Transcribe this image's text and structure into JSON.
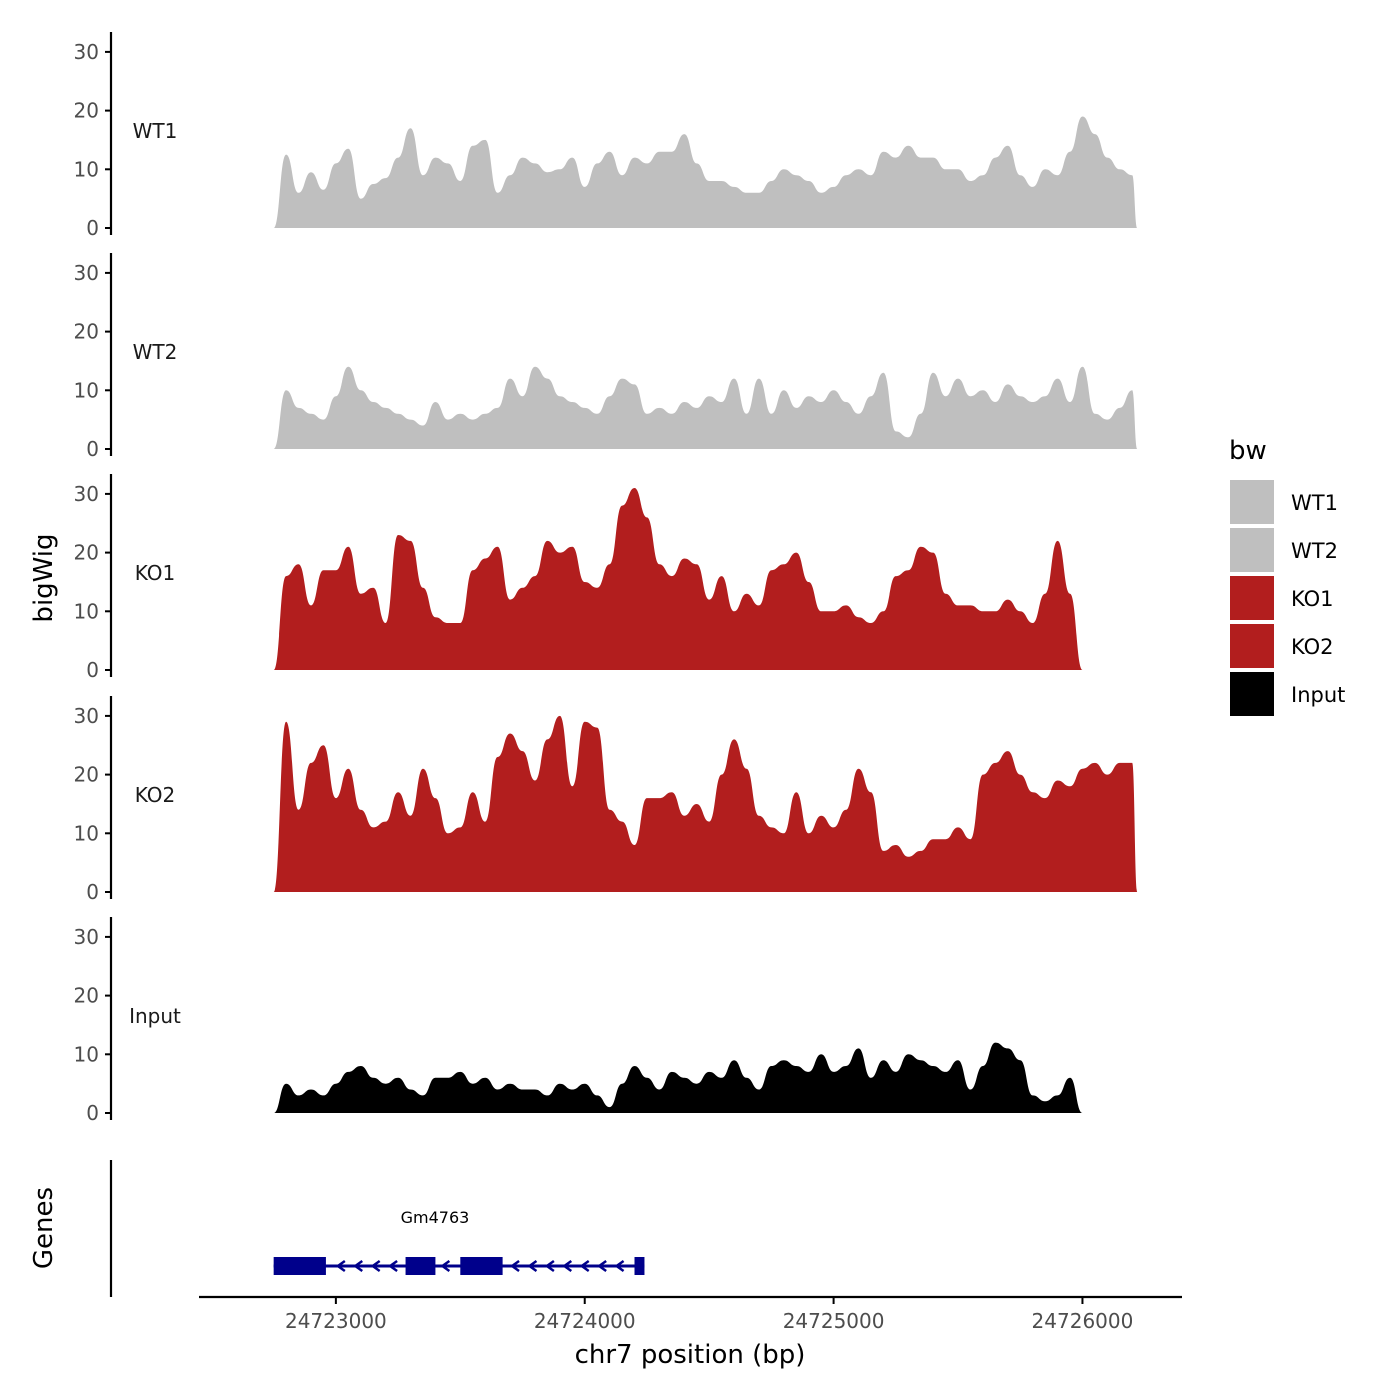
{
  "chart_data": {
    "type": "area",
    "xlabel": "chr7 position (bp)",
    "ylabel": "bigWig",
    "xlim": [
      24722450,
      24726400
    ],
    "x_ticks": [
      24723000,
      24724000,
      24725000,
      24726000
    ],
    "x_tick_labels": [
      "24723000",
      "24724000",
      "24725000",
      "24726000"
    ],
    "ylim": [
      0,
      33
    ],
    "y_ticks": [
      0,
      10,
      20,
      30
    ],
    "y_tick_labels": [
      "0",
      "10",
      "20",
      "30"
    ],
    "legend": {
      "title": "bw",
      "placement": "right",
      "entries": [
        {
          "label": "WT1",
          "color": "#bfbfbf"
        },
        {
          "label": "WT2",
          "color": "#bfbfbf"
        },
        {
          "label": "KO1",
          "color": "#b21e1e"
        },
        {
          "label": "KO2",
          "color": "#b21e1e"
        },
        {
          "label": "Input",
          "color": "#000000"
        }
      ]
    },
    "grid": false,
    "series": [
      {
        "name": "WT1",
        "color": "#bfbfbf",
        "x": [
          24722750,
          24722800,
          24722850,
          24722900,
          24722950,
          24723000,
          24723050,
          24723100,
          24723150,
          24723200,
          24723250,
          24723300,
          24723350,
          24723400,
          24723450,
          24723500,
          24723550,
          24723600,
          24723650,
          24723700,
          24723750,
          24723800,
          24723850,
          24723900,
          24723950,
          24724000,
          24724050,
          24724100,
          24724150,
          24724200,
          24724250,
          24724300,
          24724350,
          24724400,
          24724450,
          24724500,
          24724550,
          24724600,
          24724650,
          24724700,
          24724750,
          24724800,
          24724850,
          24724900,
          24724950,
          24725000,
          24725050,
          24725100,
          24725150,
          24725200,
          24725250,
          24725300,
          24725350,
          24725400,
          24725450,
          24725500,
          24725550,
          24725600,
          24725650,
          24725700,
          24725750,
          24725800,
          24725850,
          24725900,
          24725950,
          24726000,
          24726050,
          24726100,
          24726150,
          24726200,
          24726220
        ],
        "y": [
          0,
          12.5,
          6,
          9.5,
          6.5,
          11,
          13.5,
          5,
          7.5,
          8.5,
          12,
          17,
          9,
          12,
          11,
          8,
          14,
          15,
          6,
          9,
          12,
          11,
          9.5,
          10,
          12,
          7,
          11,
          13,
          9,
          12,
          11,
          13,
          13,
          16,
          11,
          8,
          8,
          7,
          6,
          6,
          8,
          10,
          9,
          8,
          6,
          7,
          9,
          10,
          9,
          13,
          12,
          14,
          12,
          12,
          10,
          10,
          8,
          9,
          12,
          14,
          9,
          7,
          10,
          9,
          13,
          19,
          16,
          12,
          10,
          9,
          0
        ]
      },
      {
        "name": "WT2",
        "color": "#bfbfbf",
        "x": [
          24722750,
          24722800,
          24722850,
          24722900,
          24722950,
          24723000,
          24723050,
          24723100,
          24723150,
          24723200,
          24723250,
          24723300,
          24723350,
          24723400,
          24723450,
          24723500,
          24723550,
          24723600,
          24723650,
          24723700,
          24723750,
          24723800,
          24723850,
          24723900,
          24723950,
          24724000,
          24724050,
          24724100,
          24724150,
          24724200,
          24724250,
          24724300,
          24724350,
          24724400,
          24724450,
          24724500,
          24724550,
          24724600,
          24724650,
          24724700,
          24724750,
          24724800,
          24724850,
          24724900,
          24724950,
          24725000,
          24725050,
          24725100,
          24725150,
          24725200,
          24725250,
          24725300,
          24725350,
          24725400,
          24725450,
          24725500,
          24725550,
          24725600,
          24725650,
          24725700,
          24725750,
          24725800,
          24725850,
          24725900,
          24725950,
          24726000,
          24726050,
          24726100,
          24726150,
          24726200,
          24726220
        ],
        "y": [
          0,
          10,
          7,
          6,
          5,
          9,
          14,
          10,
          8,
          7,
          6,
          5,
          4,
          8,
          5,
          6,
          5,
          6,
          7,
          12,
          9,
          14,
          12,
          9,
          8,
          7,
          6,
          9,
          12,
          11,
          6,
          7,
          6,
          8,
          7,
          9,
          8,
          12,
          6,
          12,
          6,
          10,
          7,
          9,
          8,
          10,
          8,
          6,
          9,
          13,
          3,
          2,
          6,
          13,
          9,
          12,
          9,
          10,
          8,
          11,
          9,
          8,
          9,
          12,
          8,
          14,
          6,
          5,
          7,
          10,
          0
        ]
      },
      {
        "name": "KO1",
        "color": "#b21e1e",
        "x": [
          24722750,
          24722800,
          24722850,
          24722900,
          24722950,
          24723000,
          24723050,
          24723100,
          24723150,
          24723200,
          24723250,
          24723300,
          24723350,
          24723400,
          24723450,
          24723500,
          24723550,
          24723600,
          24723650,
          24723700,
          24723750,
          24723800,
          24723850,
          24723900,
          24723950,
          24724000,
          24724050,
          24724100,
          24724150,
          24724200,
          24724250,
          24724300,
          24724350,
          24724400,
          24724450,
          24724500,
          24724550,
          24724600,
          24724650,
          24724700,
          24724750,
          24724800,
          24724850,
          24724900,
          24724950,
          24725000,
          24725050,
          24725100,
          24725150,
          24725200,
          24725250,
          24725300,
          24725350,
          24725400,
          24725450,
          24725500,
          24725550,
          24725600,
          24725650,
          24725700,
          24725750,
          24725800,
          24725850,
          24725900,
          24725950,
          24726000,
          24726050,
          24726100,
          24726150,
          24726200,
          24726220
        ],
        "y": [
          0,
          16,
          18,
          11,
          17,
          17,
          21,
          13,
          14,
          8,
          23,
          22,
          14,
          9,
          8,
          8,
          17,
          19,
          21,
          12,
          14,
          16,
          22,
          20,
          21,
          15,
          14,
          18,
          28,
          31,
          26,
          18,
          16,
          19,
          18,
          12,
          16,
          10,
          13,
          11,
          17,
          18,
          20,
          15,
          10,
          10,
          11,
          9,
          8,
          10,
          16,
          17,
          21,
          20,
          13,
          11,
          11,
          10,
          10,
          12,
          10,
          8,
          13,
          22,
          13,
          0,
          0,
          0,
          0,
          0,
          0
        ]
      },
      {
        "name": "KO2",
        "color": "#b21e1e",
        "x": [
          24722750,
          24722800,
          24722850,
          24722900,
          24722950,
          24723000,
          24723050,
          24723100,
          24723150,
          24723200,
          24723250,
          24723300,
          24723350,
          24723400,
          24723450,
          24723500,
          24723550,
          24723600,
          24723650,
          24723700,
          24723750,
          24723800,
          24723850,
          24723900,
          24723950,
          24724000,
          24724050,
          24724100,
          24724150,
          24724200,
          24724250,
          24724300,
          24724350,
          24724400,
          24724450,
          24724500,
          24724550,
          24724600,
          24724650,
          24724700,
          24724750,
          24724800,
          24724850,
          24724900,
          24724950,
          24725000,
          24725050,
          24725100,
          24725150,
          24725200,
          24725250,
          24725300,
          24725350,
          24725400,
          24725450,
          24725500,
          24725550,
          24725600,
          24725650,
          24725700,
          24725750,
          24725800,
          24725850,
          24725900,
          24725950,
          24726000,
          24726050,
          24726100,
          24726150,
          24726200,
          24726220
        ],
        "y": [
          0,
          29,
          14,
          22,
          25,
          16,
          21,
          14,
          11,
          12,
          17,
          13,
          21,
          16,
          10,
          11,
          17,
          12,
          23,
          27,
          24,
          19,
          26,
          30,
          18,
          29,
          28,
          14,
          12,
          8,
          16,
          16,
          17,
          13,
          15,
          12,
          20,
          26,
          21,
          13,
          11,
          10,
          17,
          10,
          13,
          11,
          14,
          21,
          17,
          7,
          8,
          6,
          7,
          9,
          9,
          11,
          9,
          20,
          22,
          24,
          20,
          17,
          16,
          19,
          18,
          21,
          22,
          20,
          22,
          22,
          0
        ]
      },
      {
        "name": "Input",
        "color": "#000000",
        "x": [
          24722750,
          24722800,
          24722850,
          24722900,
          24722950,
          24723000,
          24723050,
          24723100,
          24723150,
          24723200,
          24723250,
          24723300,
          24723350,
          24723400,
          24723450,
          24723500,
          24723550,
          24723600,
          24723650,
          24723700,
          24723750,
          24723800,
          24723850,
          24723900,
          24723950,
          24724000,
          24724050,
          24724100,
          24724150,
          24724200,
          24724250,
          24724300,
          24724350,
          24724400,
          24724450,
          24724500,
          24724550,
          24724600,
          24724650,
          24724700,
          24724750,
          24724800,
          24724850,
          24724900,
          24724950,
          24725000,
          24725050,
          24725100,
          24725150,
          24725200,
          24725250,
          24725300,
          24725350,
          24725400,
          24725450,
          24725500,
          24725550,
          24725600,
          24725650,
          24725700,
          24725750,
          24725800,
          24725850,
          24725900,
          24725950,
          24726000,
          24726050,
          24726100,
          24726150,
          24726200,
          24726220
        ],
        "y": [
          0,
          5,
          3,
          4,
          3,
          5,
          7,
          8,
          6,
          5,
          6,
          4,
          3,
          6,
          6,
          7,
          5,
          6,
          4,
          5,
          4,
          4,
          3,
          5,
          4,
          5,
          3,
          1,
          5,
          8,
          6,
          4,
          7,
          6,
          5,
          7,
          6,
          9,
          6,
          4,
          8,
          9,
          8,
          7,
          10,
          7,
          8,
          11,
          6,
          9,
          7,
          10,
          9,
          8,
          7,
          9,
          4,
          8,
          12,
          11,
          9,
          3,
          2,
          3,
          6,
          0,
          0,
          0,
          0,
          0,
          0
        ]
      }
    ],
    "genes": {
      "title": "Genes",
      "name": "Gm4763",
      "strand": "-",
      "color": "#00008b",
      "start": 24722750,
      "end": 24724240,
      "exons": [
        [
          24722750,
          24722960
        ],
        [
          24723280,
          24723400
        ],
        [
          24723500,
          24723670
        ],
        [
          24724200,
          24724240
        ]
      ]
    }
  }
}
